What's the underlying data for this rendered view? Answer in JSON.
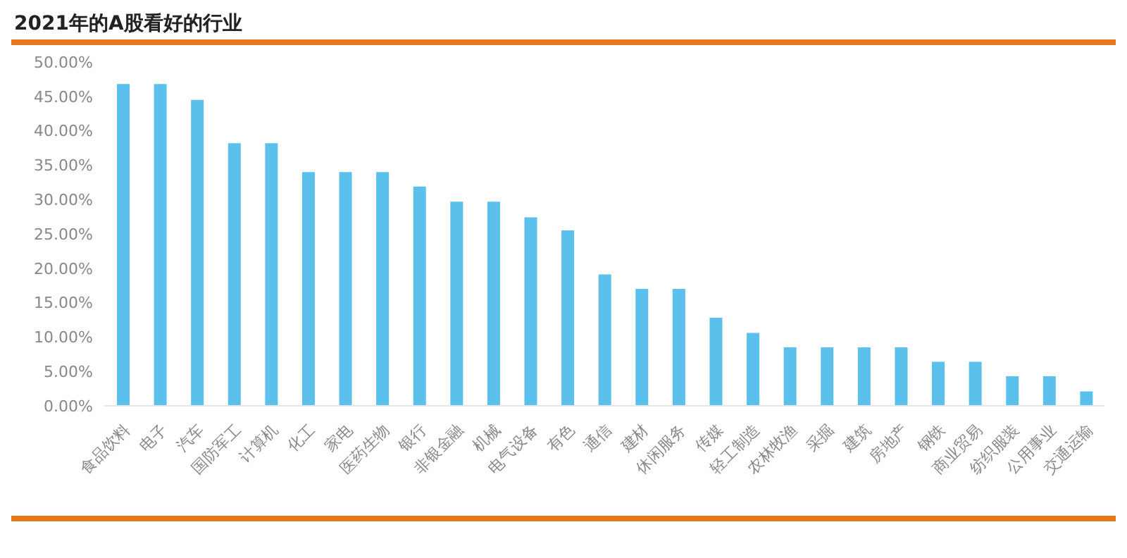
{
  "chart_data": {
    "type": "bar",
    "title": "2021年的A股看好的行业",
    "categories": [
      "食品饮料",
      "电子",
      "汽车",
      "国防军工",
      "计算机",
      "化工",
      "家电",
      "医药生物",
      "银行",
      "非银金融",
      "机械",
      "电气设备",
      "有色",
      "通信",
      "建材",
      "休闲服务",
      "传媒",
      "轻工制造",
      "农林牧渔",
      "采掘",
      "建筑",
      "房地产",
      "钢铁",
      "商业贸易",
      "纺织服装",
      "公用事业",
      "交通运输"
    ],
    "values": [
      46.8,
      46.8,
      44.5,
      38.2,
      38.2,
      34.0,
      34.0,
      34.0,
      31.9,
      29.7,
      29.7,
      27.4,
      25.5,
      19.1,
      17.0,
      17.0,
      12.8,
      10.6,
      8.5,
      8.5,
      8.5,
      8.5,
      6.4,
      6.4,
      4.3,
      4.3,
      2.1
    ],
    "color": "#5bc0eb",
    "ylim": [
      0,
      50
    ],
    "yticks": [
      {
        "value": 0,
        "label": "0.00%"
      },
      {
        "value": 5,
        "label": "5.00%"
      },
      {
        "value": 10,
        "label": "10.00%"
      },
      {
        "value": 15,
        "label": "15.00%"
      },
      {
        "value": 20,
        "label": "20.00%"
      },
      {
        "value": 25,
        "label": "25.00%"
      },
      {
        "value": 30,
        "label": "30.00%"
      },
      {
        "value": 35,
        "label": "35.00%"
      },
      {
        "value": 40,
        "label": "40.00%"
      },
      {
        "value": 45,
        "label": "45.00%"
      },
      {
        "value": 50,
        "label": "50.00%"
      }
    ],
    "grid": false,
    "legend": false
  }
}
